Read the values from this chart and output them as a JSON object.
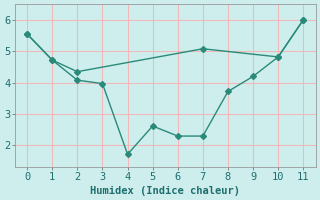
{
  "line_upper_x": [
    0,
    1,
    2,
    7,
    10,
    11
  ],
  "line_upper_y": [
    5.55,
    4.72,
    4.35,
    5.08,
    4.82,
    6.0
  ],
  "line_lower_x": [
    0,
    1,
    2,
    3,
    4,
    5,
    6,
    7,
    8,
    9,
    10,
    11
  ],
  "line_lower_y": [
    5.55,
    4.72,
    4.08,
    3.97,
    1.72,
    2.62,
    2.3,
    2.3,
    3.72,
    4.2,
    4.82,
    6.0
  ],
  "color": "#2a8a7a",
  "bg_color": "#ceeeed",
  "grid_color": "#f0b8b8",
  "xlabel": "Humidex (Indice chaleur)",
  "xlim": [
    -0.5,
    11.5
  ],
  "ylim": [
    1.3,
    6.5
  ],
  "yticks": [
    2,
    3,
    4,
    5,
    6
  ],
  "xticks": [
    0,
    1,
    2,
    3,
    4,
    5,
    6,
    7,
    8,
    9,
    10,
    11
  ],
  "font_size": 7.5,
  "marker_size": 3.0,
  "line_width": 1.0
}
